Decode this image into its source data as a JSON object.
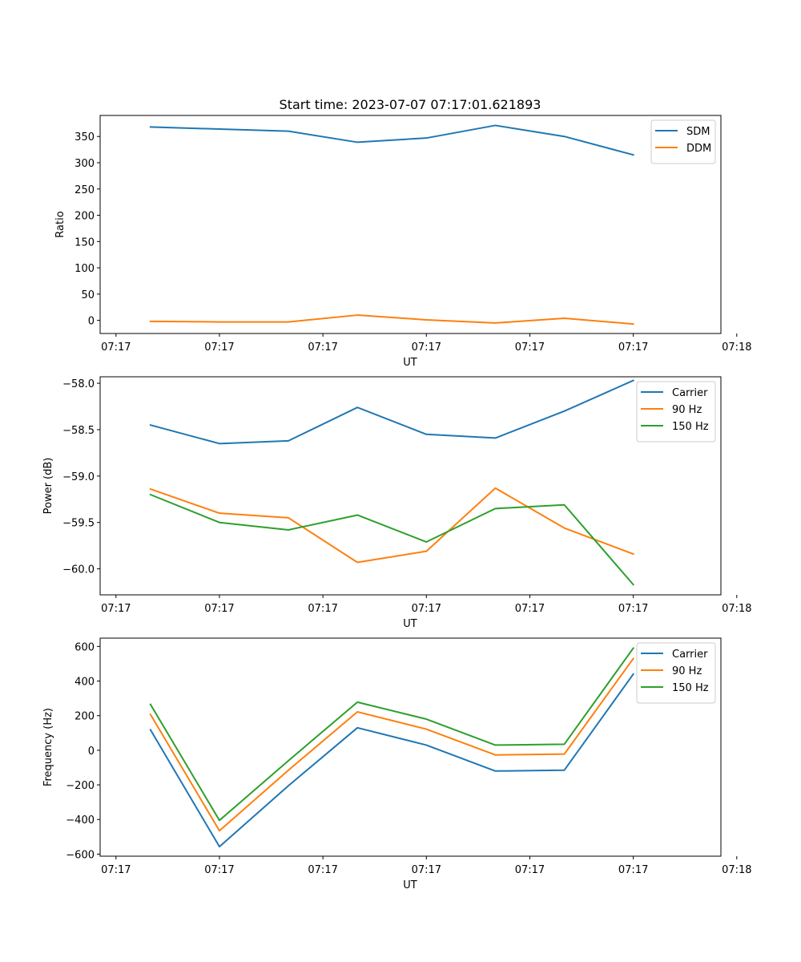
{
  "title": "Start time: 2023-07-07 07:17:01.621893",
  "chart_data": [
    {
      "type": "line",
      "title": "Start time: 2023-07-07 07:17:01.621893",
      "xlabel": "UT",
      "ylabel": "Ratio",
      "x": [
        1,
        2,
        3,
        4,
        5,
        6,
        7,
        8
      ],
      "xlim": [
        0.27,
        9.27
      ],
      "ylim": [
        -25,
        390
      ],
      "yticks": [
        0,
        50,
        100,
        150,
        200,
        250,
        300,
        350
      ],
      "xticks": [
        0.5,
        2,
        3.5,
        5,
        6.5,
        8,
        9.5
      ],
      "xticklabels": [
        "07:17",
        "07:17",
        "07:17",
        "07:17",
        "07:17",
        "07:17",
        "07:18"
      ],
      "legend_loc": "upper right",
      "series": [
        {
          "name": "SDM",
          "color": "#1f77b4",
          "values": [
            368,
            364,
            360,
            339,
            347,
            371,
            350,
            315
          ]
        },
        {
          "name": "DDM",
          "color": "#ff7f0e",
          "values": [
            -2,
            -3,
            -3,
            10,
            1,
            -5,
            4,
            -7
          ]
        }
      ]
    },
    {
      "type": "line",
      "title": "",
      "xlabel": "UT",
      "ylabel": "Power (dB)",
      "x": [
        1,
        2,
        3,
        4,
        5,
        6,
        7,
        8
      ],
      "xlim": [
        0.27,
        9.27
      ],
      "ylim": [
        -60.28,
        -57.93
      ],
      "yticks": [
        -60.0,
        -59.5,
        -59.0,
        -58.5,
        -58.0
      ],
      "yticklabels": [
        "−60.0",
        "−59.5",
        "−59.0",
        "−58.5",
        "−58.0"
      ],
      "xticks": [
        0.5,
        2,
        3.5,
        5,
        6.5,
        8,
        9.5
      ],
      "xticklabels": [
        "07:17",
        "07:17",
        "07:17",
        "07:17",
        "07:17",
        "07:17",
        "07:18"
      ],
      "legend_loc": "upper right",
      "series": [
        {
          "name": "Carrier",
          "color": "#1f77b4",
          "values": [
            -58.45,
            -58.65,
            -58.62,
            -58.26,
            -58.55,
            -58.59,
            -58.3,
            -57.97
          ]
        },
        {
          "name": "90 Hz",
          "color": "#ff7f0e",
          "values": [
            -59.14,
            -59.4,
            -59.45,
            -59.93,
            -59.81,
            -59.13,
            -59.56,
            -59.84
          ]
        },
        {
          "name": "150 Hz",
          "color": "#2ca02c",
          "values": [
            -59.2,
            -59.5,
            -59.58,
            -59.42,
            -59.71,
            -59.35,
            -59.31,
            -60.17
          ]
        }
      ]
    },
    {
      "type": "line",
      "title": "",
      "xlabel": "UT",
      "ylabel": "Frequency (Hz)",
      "x": [
        1,
        2,
        3,
        4,
        5,
        6,
        7,
        8
      ],
      "xlim": [
        0.27,
        9.27
      ],
      "ylim": [
        -612,
        648
      ],
      "yticks": [
        -600,
        -400,
        -200,
        0,
        200,
        400,
        600
      ],
      "yticklabels": [
        "−600",
        "−400",
        "−200",
        "0",
        "200",
        "400",
        "600"
      ],
      "xticks": [
        0.5,
        2,
        3.5,
        5,
        6.5,
        8,
        9.5
      ],
      "xticklabels": [
        "07:17",
        "07:17",
        "07:17",
        "07:17",
        "07:17",
        "07:17",
        "07:18"
      ],
      "legend_loc": "upper right",
      "series": [
        {
          "name": "Carrier",
          "color": "#1f77b4",
          "values": [
            118,
            -557,
            -205,
            130,
            30,
            -120,
            -115,
            440
          ]
        },
        {
          "name": "90 Hz",
          "color": "#ff7f0e",
          "values": [
            207,
            -465,
            -115,
            222,
            122,
            -27,
            -22,
            530
          ]
        },
        {
          "name": "150 Hz",
          "color": "#2ca02c",
          "values": [
            265,
            -405,
            -60,
            278,
            180,
            30,
            35,
            590
          ]
        }
      ]
    }
  ]
}
